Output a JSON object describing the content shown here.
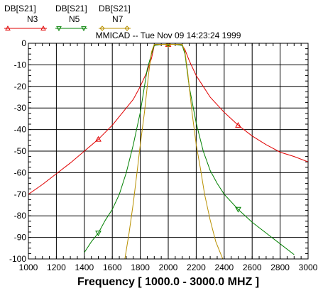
{
  "chart_data": {
    "type": "line",
    "subtitle": "MMICAD -- Tue Nov 09 14:23:24 1999",
    "xlabel": "Frequency [ 1000.0 - 3000.0 MHZ ]",
    "xlim": [
      1000,
      3000
    ],
    "ylim": [
      -100,
      0
    ],
    "xticks": [
      "1000",
      "1200",
      "1400",
      "1600",
      "1800",
      "2000",
      "2200",
      "2400",
      "2600",
      "2800",
      "3000"
    ],
    "yticks": [
      "0",
      "-10",
      "-20",
      "-30",
      "-40",
      "-50",
      "-60",
      "-70",
      "-80",
      "-90",
      "-100"
    ],
    "grid": true,
    "legend_position": "top-left",
    "series": [
      {
        "name": "N3",
        "header": "DB[S21]",
        "color": "#e00000",
        "marker": "triangle-up",
        "x": [
          1000,
          1100,
          1200,
          1300,
          1400,
          1500,
          1600,
          1700,
          1750,
          1800,
          1850,
          1880,
          1900,
          1950,
          2000,
          2050,
          2100,
          2120,
          2150,
          2200,
          2250,
          2300,
          2400,
          2500,
          2600,
          2700,
          2800,
          2900,
          3000
        ],
        "y": [
          -70,
          -65.5,
          -60.5,
          -55.5,
          -50,
          -44.5,
          -38,
          -30,
          -26,
          -20,
          -13,
          -7,
          -1,
          -0.5,
          -0.5,
          -0.5,
          -1,
          -3,
          -8,
          -15,
          -20,
          -25,
          -32,
          -38,
          -43,
          -47,
          -50.5,
          -52.5,
          -55
        ],
        "marker_x": [
          1500,
          2000,
          2500
        ]
      },
      {
        "name": "N5",
        "header": "DB[S21]",
        "color": "#008000",
        "marker": "triangle-down",
        "x": [
          1400,
          1450,
          1500,
          1550,
          1600,
          1650,
          1700,
          1750,
          1800,
          1850,
          1880,
          1900,
          1950,
          2000,
          2050,
          2100,
          2120,
          2150,
          2200,
          2250,
          2300,
          2350,
          2400,
          2500,
          2600,
          2700,
          2800,
          2900
        ],
        "y": [
          -97,
          -92,
          -88,
          -82,
          -77,
          -70,
          -60,
          -47,
          -32,
          -12,
          -5,
          -1,
          -0.5,
          -0.5,
          -0.5,
          -1,
          -5,
          -20,
          -37,
          -50,
          -59,
          -65,
          -70,
          -77,
          -83,
          -88,
          -93,
          -98
        ],
        "marker_x": [
          1500,
          2000,
          2500
        ]
      },
      {
        "name": "N7",
        "header": "DB[S21]",
        "color": "#b89000",
        "marker": "diamond",
        "x": [
          1690,
          1720,
          1750,
          1780,
          1800,
          1830,
          1860,
          1880,
          1900,
          1950,
          2000,
          2050,
          2100,
          2120,
          2140,
          2170,
          2200,
          2230,
          2260,
          2300,
          2340,
          2390
        ],
        "y": [
          -100,
          -88,
          -74,
          -58,
          -47,
          -32,
          -14,
          -4,
          -0.5,
          -0.5,
          -0.5,
          -0.5,
          -0.5,
          -4,
          -14,
          -32,
          -47,
          -58,
          -70,
          -82,
          -92,
          -100
        ],
        "marker_x": [
          2000
        ]
      }
    ]
  }
}
